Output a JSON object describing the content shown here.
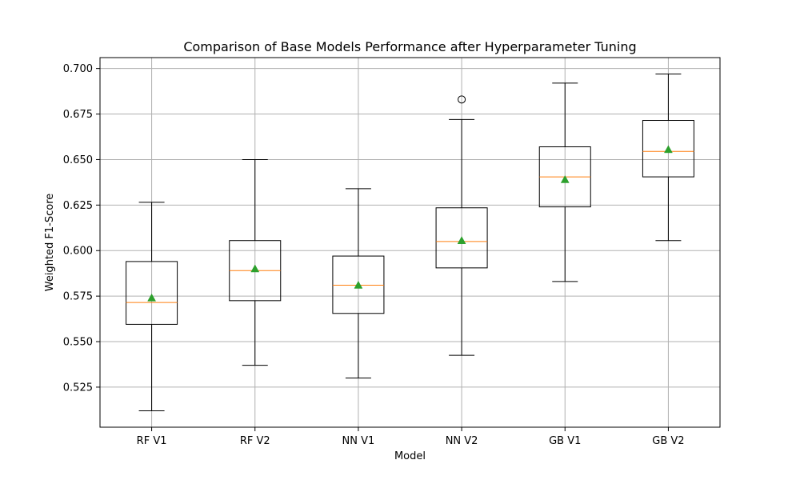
{
  "chart_data": {
    "type": "box",
    "title": "Comparison of Base Models Performance after Hyperparameter Tuning",
    "xlabel": "Model",
    "ylabel": "Weighted F1-Score",
    "ylim": [
      0.503,
      0.706
    ],
    "yticks": [
      "0.525",
      "0.550",
      "0.575",
      "0.600",
      "0.625",
      "0.650",
      "0.675",
      "0.700"
    ],
    "grid": true,
    "categories": [
      "RF V1",
      "RF V2",
      "NN V1",
      "NN V2",
      "GB V1",
      "GB V2"
    ],
    "boxes": [
      {
        "name": "RF V1",
        "whisker_low": 0.512,
        "q1": 0.5595,
        "median": 0.5715,
        "q3": 0.594,
        "whisker_high": 0.6265,
        "mean": 0.574,
        "outliers": []
      },
      {
        "name": "RF V2",
        "whisker_low": 0.537,
        "q1": 0.5725,
        "median": 0.589,
        "q3": 0.6055,
        "whisker_high": 0.65,
        "mean": 0.59,
        "outliers": []
      },
      {
        "name": "NN V1",
        "whisker_low": 0.53,
        "q1": 0.5655,
        "median": 0.581,
        "q3": 0.597,
        "whisker_high": 0.634,
        "mean": 0.581,
        "outliers": []
      },
      {
        "name": "NN V2",
        "whisker_low": 0.5425,
        "q1": 0.5905,
        "median": 0.605,
        "q3": 0.6235,
        "whisker_high": 0.672,
        "mean": 0.6055,
        "outliers": [
          0.683
        ]
      },
      {
        "name": "GB V1",
        "whisker_low": 0.583,
        "q1": 0.624,
        "median": 0.6405,
        "q3": 0.657,
        "whisker_high": 0.692,
        "mean": 0.639,
        "outliers": []
      },
      {
        "name": "GB V2",
        "whisker_low": 0.6055,
        "q1": 0.6405,
        "median": 0.6545,
        "q3": 0.6715,
        "whisker_high": 0.697,
        "mean": 0.6555,
        "outliers": []
      }
    ],
    "colors": {
      "box": "#000000",
      "median": "#ff7f0e",
      "mean": "#2ca02c",
      "grid": "#b0b0b0"
    }
  }
}
